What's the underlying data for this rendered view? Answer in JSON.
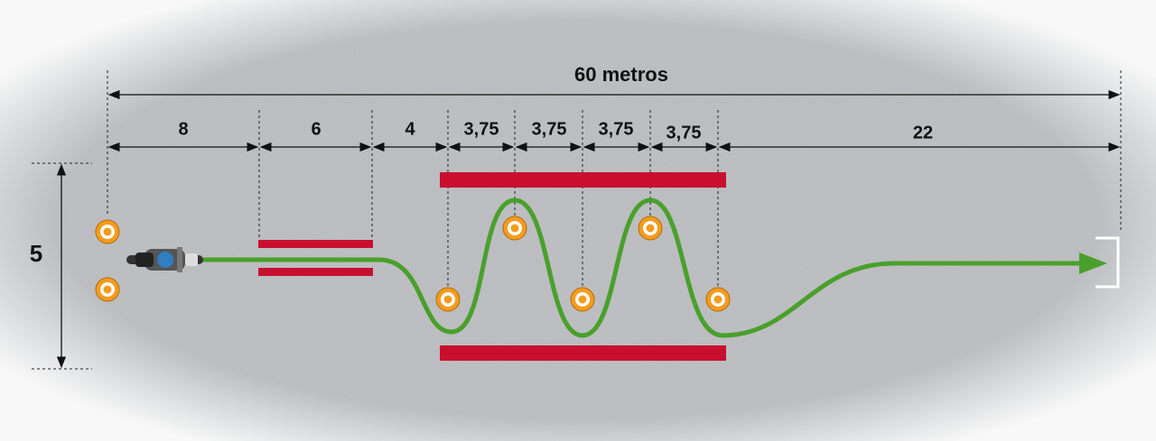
{
  "diagram": {
    "total_label": "60 metros",
    "segments": [
      "8",
      "6",
      "4",
      "3,75",
      "3,75",
      "3,75",
      "3,75",
      "22"
    ],
    "height_label": "5"
  }
}
